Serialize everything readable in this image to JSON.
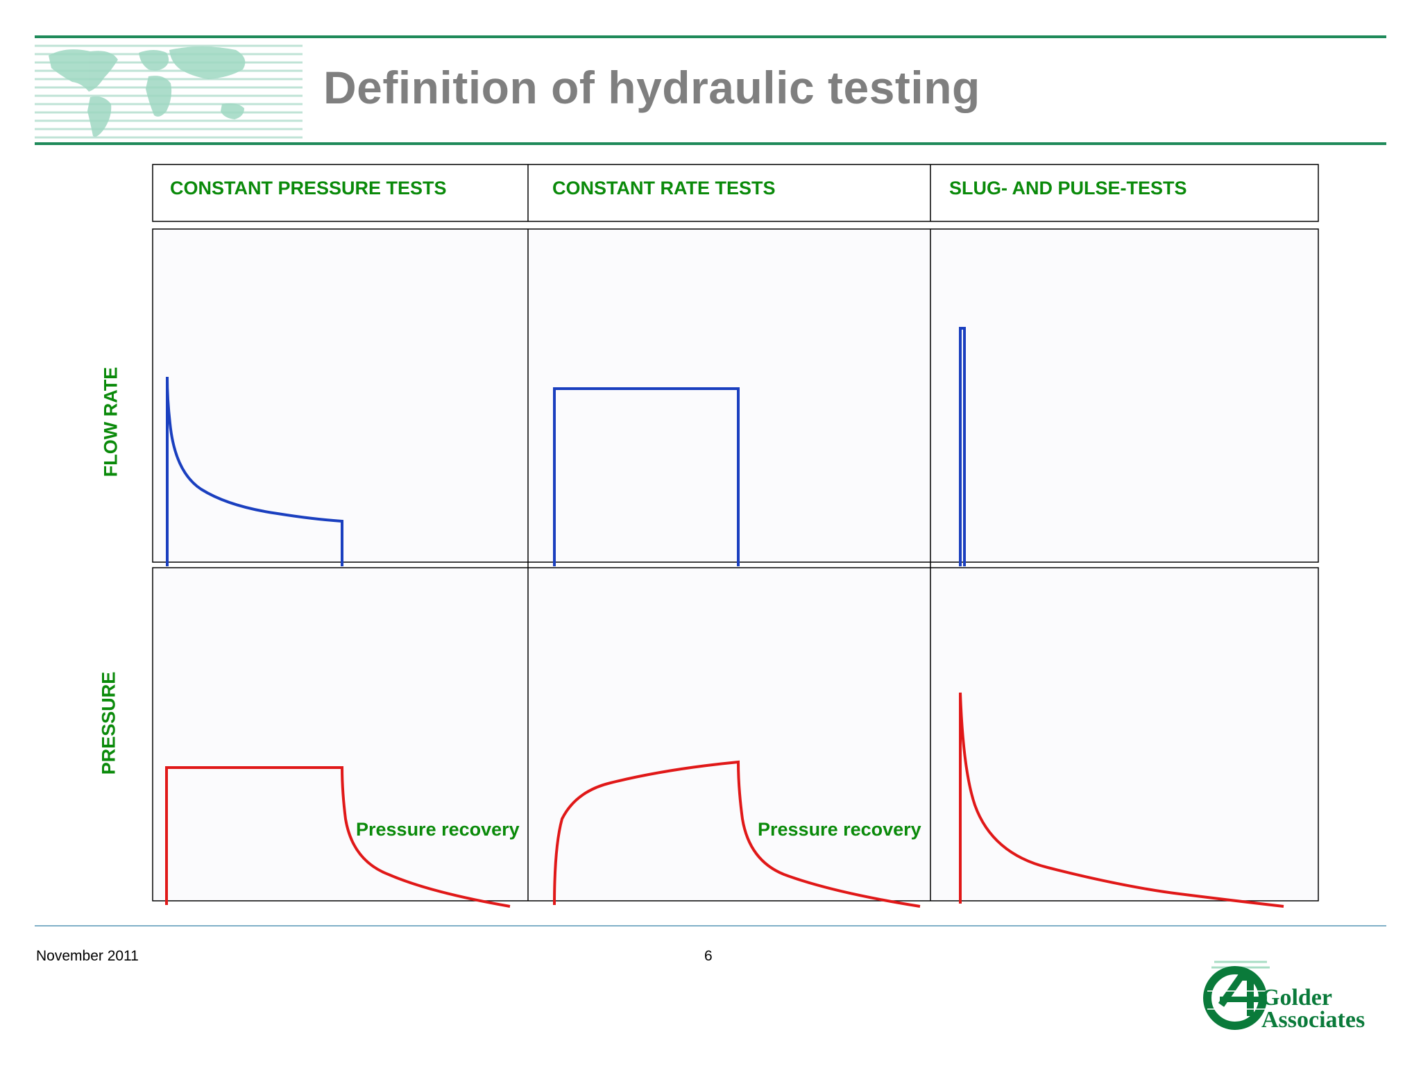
{
  "title": "Definition of hydraulic testing",
  "columns": [
    "CONSTANT PRESSURE TESTS",
    "CONSTANT RATE TESTS",
    "SLUG- AND PULSE-TESTS"
  ],
  "rows": [
    "FLOW RATE",
    "PRESSURE"
  ],
  "annotations": {
    "recovery_1": "Pressure recovery",
    "recovery_2": "Pressure recovery"
  },
  "footer": {
    "date": "November 2011",
    "page": "6"
  },
  "logo": {
    "line1": "Golder",
    "line2": "Associates",
    "icon": "golder-logo-icon"
  },
  "colors": {
    "title": "#7f7f7f",
    "accent_green": "#0a8a0a",
    "rule_green": "#1f8a5a",
    "flow_line": "#1a3fbf",
    "pressure_line": "#e01818"
  }
}
